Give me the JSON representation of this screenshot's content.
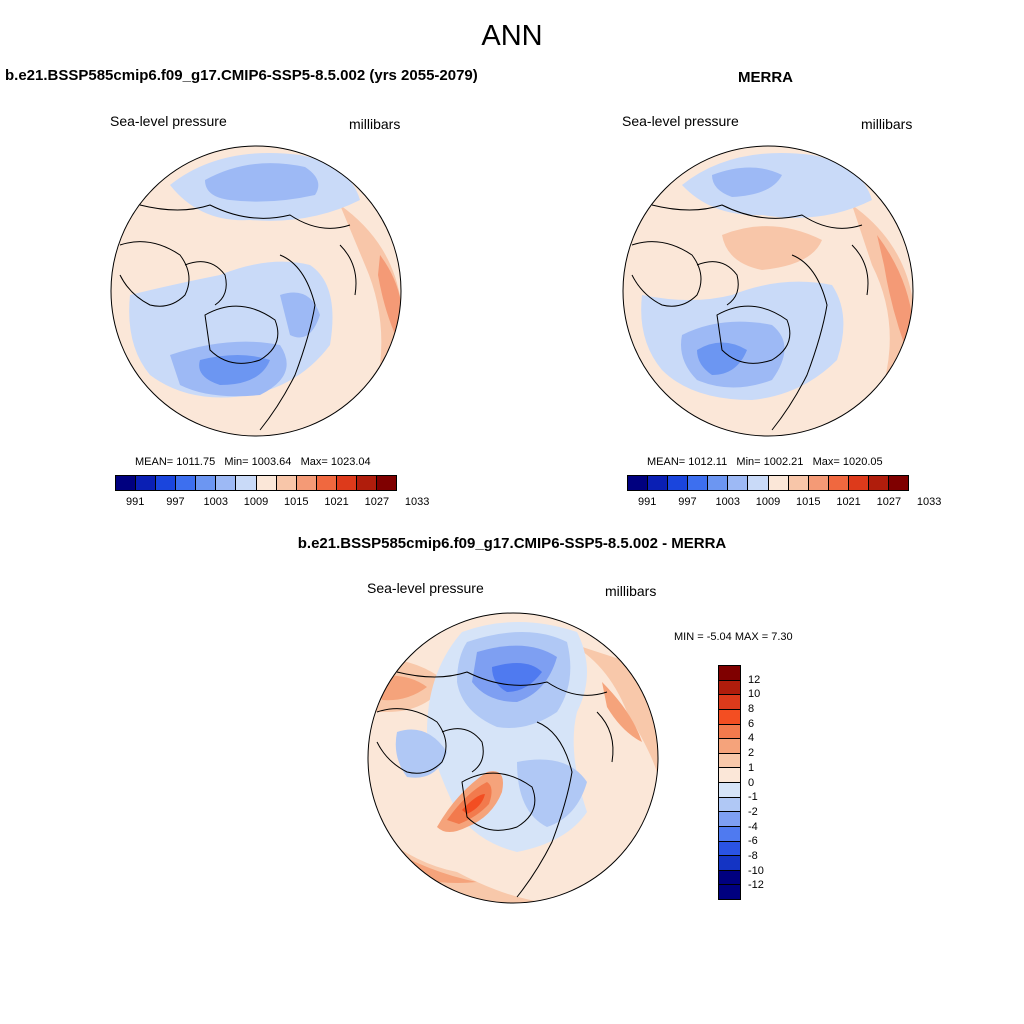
{
  "title": "ANN",
  "panels": {
    "model": {
      "title": "b.e21.BSSP585cmip6.f09_g17.CMIP6-SSP5-8.5.002 (yrs 2055-2079)",
      "variable": "Sea-level pressure",
      "units": "millibars",
      "mean_label": "MEAN=",
      "mean": "1011.75",
      "min_label": "Min=",
      "min": "1003.64",
      "max_label": "Max=",
      "max": "1023.04"
    },
    "obs": {
      "title": "MERRA",
      "variable": "Sea-level pressure",
      "units": "millibars",
      "mean_label": "MEAN=",
      "mean": "1012.11",
      "min_label": "Min=",
      "min": "1002.21",
      "max_label": "Max=",
      "max": "1020.05"
    },
    "diff": {
      "title": "b.e21.BSSP585cmip6.f09_g17.CMIP6-SSP5-8.5.002 - MERRA",
      "variable": "Sea-level pressure",
      "units": "millibars",
      "stats": "MIN =  -5.04 MAX =   7.30"
    }
  },
  "colorbars": {
    "absolute": {
      "colors": [
        "#00007f",
        "#0a1fb4",
        "#1a45dd",
        "#3d6fef",
        "#6c96f2",
        "#9db9f5",
        "#c9daf8",
        "#fbe7d8",
        "#f8c6a9",
        "#f49a76",
        "#f0683f",
        "#dd3a1b",
        "#b01d0c",
        "#7f0000"
      ],
      "tick_labels": [
        "991",
        "997",
        "1003",
        "1009",
        "1015",
        "1021",
        "1027",
        "1033"
      ]
    },
    "difference": {
      "colors": [
        "#7f0000",
        "#b01d0c",
        "#dd3a1b",
        "#f34e22",
        "#f27a4d",
        "#f5a37b",
        "#f8c8aa",
        "#fbe7d8",
        "#d6e4f8",
        "#b0c8f5",
        "#7e9ff2",
        "#4f7af0",
        "#2a53e4",
        "#1434c4",
        "#00007f"
      ],
      "tick_labels": [
        "12",
        "10",
        "8",
        "6",
        "4",
        "2",
        "1",
        "0",
        "-1",
        "-2",
        "-4",
        "-6",
        "-8",
        "-10",
        "-12"
      ]
    }
  }
}
